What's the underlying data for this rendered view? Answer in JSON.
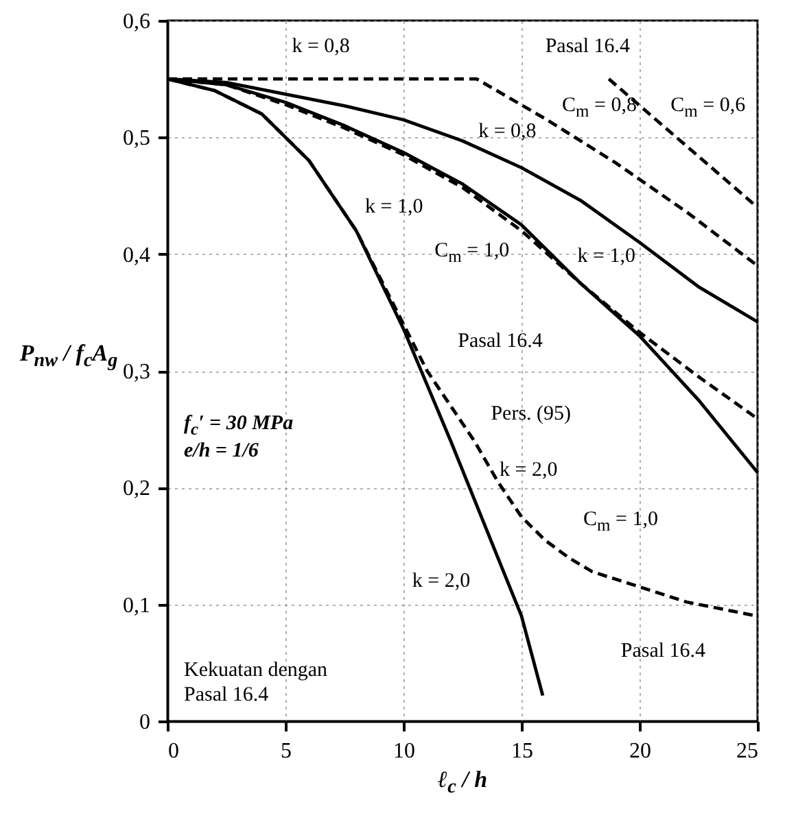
{
  "chart_data": {
    "type": "line",
    "xlabel": "ℓ$_{c}$ / h",
    "ylabel": "P$_{nw}$ / f$_{c}$A$_{g}$",
    "xlim": [
      0,
      25
    ],
    "xticks": [
      0,
      5,
      10,
      15,
      20,
      25
    ],
    "ylim": [
      0,
      0.6
    ],
    "yticks": [
      0,
      {
        "value": 0.1,
        "label": "0,1"
      },
      {
        "value": 0.2,
        "label": "0,2"
      },
      {
        "value": 0.3,
        "label": "0,3"
      },
      {
        "value": 0.4,
        "label": "0,4"
      },
      {
        "value": 0.5,
        "label": "0,5"
      },
      {
        "value": 0.6,
        "label": "0,6"
      }
    ],
    "grid": true,
    "series": [
      {
        "color": "#000000",
        "line_style": "solid",
        "x": [
          0,
          2.5,
          5,
          7.5,
          10,
          12.5,
          15,
          17.5,
          20,
          22.5,
          25
        ],
        "values": [
          0.55,
          0.547,
          0.537,
          0.527,
          0.515,
          0.497,
          0.474,
          0.446,
          0.41,
          0.372,
          0.342
        ]
      },
      {
        "color": "#000000",
        "line_style": "solid",
        "x": [
          0,
          2.5,
          5,
          7.5,
          10,
          12.5,
          15,
          17.5,
          20,
          22.5,
          25
        ],
        "values": [
          0.55,
          0.545,
          0.53,
          0.51,
          0.487,
          0.46,
          0.425,
          0.375,
          0.33,
          0.275,
          0.213
        ]
      },
      {
        "color": "#000000",
        "line_style": "solid",
        "x": [
          0,
          2,
          4,
          6,
          8,
          10,
          11,
          12,
          13,
          14,
          15,
          15.9
        ],
        "values": [
          0.55,
          0.54,
          0.52,
          0.48,
          0.42,
          0.336,
          0.288,
          0.24,
          0.19,
          0.14,
          0.09,
          0.022
        ]
      },
      {
        "color": "#000000",
        "line_style": "dashed",
        "x": [
          0,
          13.1,
          16,
          19,
          22,
          25
        ],
        "values": [
          0.55,
          0.55,
          0.516,
          0.478,
          0.436,
          0.39
        ]
      },
      {
        "color": "#000000",
        "line_style": "dashed",
        "x": [
          18.7,
          25
        ],
        "values": [
          0.55,
          0.44
        ]
      },
      {
        "color": "#000000",
        "line_style": "dashed",
        "x": [
          0,
          2.5,
          5,
          7.5,
          10,
          12.5,
          15,
          17.5,
          20,
          22.5,
          25
        ],
        "values": [
          0.55,
          0.545,
          0.528,
          0.508,
          0.485,
          0.457,
          0.42,
          0.375,
          0.333,
          0.295,
          0.259
        ]
      },
      {
        "color": "#000000",
        "line_style": "dashed",
        "x": [
          0,
          2,
          4,
          6,
          8,
          10,
          11,
          12,
          13,
          14,
          15,
          16,
          17,
          18,
          20,
          22,
          24,
          25
        ],
        "values": [
          0.55,
          0.54,
          0.52,
          0.48,
          0.42,
          0.34,
          0.3,
          0.27,
          0.24,
          0.205,
          0.175,
          0.155,
          0.14,
          0.128,
          0.115,
          0.102,
          0.094,
          0.09
        ]
      }
    ],
    "annotations": [
      "k = 0,8",
      "Pasal 16.4",
      "C$_{m}$ = 0,6",
      "C$_{m}$ = 0,8",
      "k = 0,8",
      "k = 1,0",
      "C$_{m}$ = 1,0",
      "k = 1,0",
      "Pasal 16.4",
      "Pers. (95)",
      "k = 2,0",
      "C$_{m}$ = 1,0",
      "k = 2,0",
      "Pasal 16.4",
      "f$_{c}$′ = 30 MPa",
      "e/h = 1/6",
      "Kekuatan dengan Pasal 16.4"
    ]
  }
}
